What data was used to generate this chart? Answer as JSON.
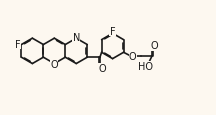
{
  "bg_color": "#fdf8f0",
  "bond_color": "#1a1a1a",
  "bond_width": 1.2,
  "dbo": 0.038,
  "fs": 7.0,
  "figsize": [
    2.16,
    1.16
  ],
  "dpi": 100,
  "xlim": [
    0,
    10.5
  ],
  "ylim": [
    0,
    5.5
  ]
}
